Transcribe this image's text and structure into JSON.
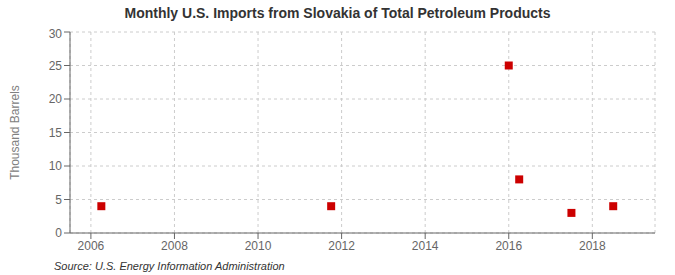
{
  "chart_data": {
    "type": "scatter",
    "title": "Monthly U.S. Imports from Slovakia of Total Petroleum Products",
    "ylabel": "Thousand Barrels",
    "annotations": [
      "Source: U.S. Energy Information Administration"
    ],
    "x": [
      2006.25,
      2011.75,
      2016.0,
      2016.25,
      2017.5,
      2018.5
    ],
    "values": [
      4,
      4,
      25,
      8,
      3,
      4
    ],
    "color": "#cc0000",
    "marker": "square",
    "xlim": [
      2005.5,
      2019.5
    ],
    "ylim": [
      0,
      30
    ],
    "xticks": [
      2006,
      2008,
      2010,
      2012,
      2014,
      2016,
      2018
    ],
    "yticks": [
      0,
      5,
      10,
      15,
      20,
      25,
      30
    ],
    "grid": true
  }
}
